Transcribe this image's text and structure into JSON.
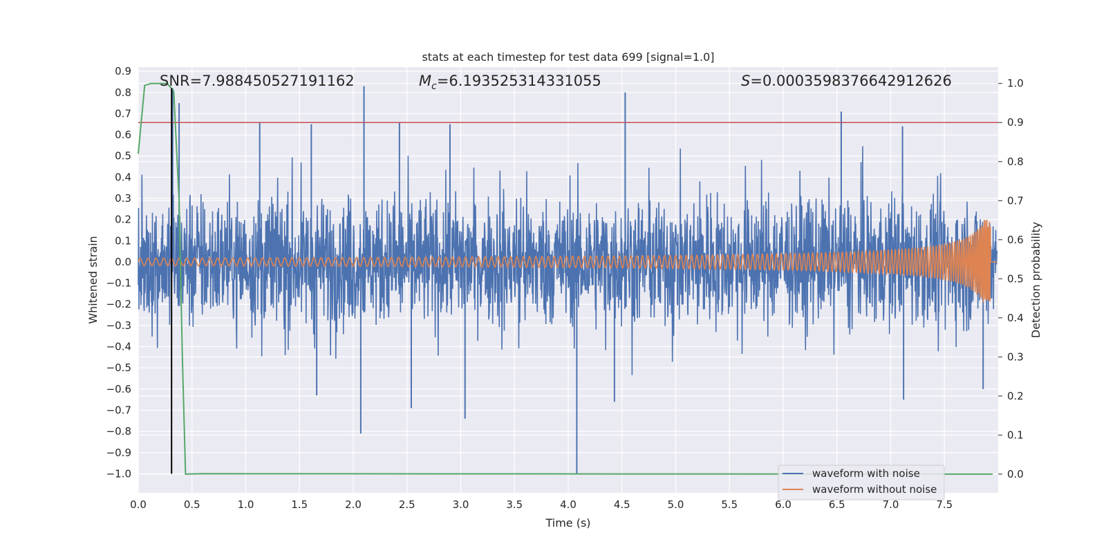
{
  "chart_data": {
    "type": "line",
    "title": "stats at each timestep for test data 699 [signal=1.0]",
    "xlabel": "Time (s)",
    "ylabel": "Whitened strain",
    "ylabel_right": "Detection probability",
    "xlim": [
      0.0,
      8.0
    ],
    "ylim": [
      -1.09,
      0.92
    ],
    "ylim_right": [
      -0.048,
      1.042
    ],
    "x_ticks": [
      "0.0",
      "0.5",
      "1.0",
      "1.5",
      "2.0",
      "2.5",
      "3.0",
      "3.5",
      "4.0",
      "4.5",
      "5.0",
      "5.5",
      "6.0",
      "6.5",
      "7.0",
      "7.5"
    ],
    "y_ticks": [
      "0.9",
      "0.8",
      "0.7",
      "0.6",
      "0.5",
      "0.4",
      "0.3",
      "0.2",
      "0.1",
      "0.0",
      "−0.1",
      "−0.2",
      "−0.3",
      "−0.4",
      "−0.5",
      "−0.6",
      "−0.7",
      "−0.8",
      "−0.9",
      "−1.0"
    ],
    "y_right_ticks": [
      "1.0",
      "0.9",
      "0.8",
      "0.7",
      "0.6",
      "0.5",
      "0.4",
      "0.3",
      "0.2",
      "0.1",
      "0.0"
    ],
    "annotations": {
      "snr": "SNR=7.988450527191162",
      "mc_symbol": "M",
      "mc_sub": "c",
      "mc_value": "=6.193525314331055",
      "s_symbol": "S",
      "s_value": "=0.0003598376642912626"
    },
    "threshold_right": 0.9,
    "marker_time": 0.31,
    "noise_envelope": {
      "typical_max": 0.45,
      "typical_min": -0.48
    },
    "noise_spikes": [
      {
        "t": 0.32,
        "v": 0.82
      },
      {
        "t": 0.38,
        "v": 0.75
      },
      {
        "t": 1.13,
        "v": 0.66
      },
      {
        "t": 1.61,
        "v": 0.65
      },
      {
        "t": 2.1,
        "v": 0.83
      },
      {
        "t": 2.43,
        "v": 0.66
      },
      {
        "t": 2.9,
        "v": 0.65
      },
      {
        "t": 4.53,
        "v": 0.8
      },
      {
        "t": 6.54,
        "v": 0.71
      },
      {
        "t": 7.11,
        "v": 0.64
      },
      {
        "t": 4.08,
        "v": -1.0
      },
      {
        "t": 2.07,
        "v": -0.81
      },
      {
        "t": 2.54,
        "v": -0.69
      },
      {
        "t": 3.04,
        "v": -0.74
      },
      {
        "t": 1.66,
        "v": -0.63
      },
      {
        "t": 7.12,
        "v": -0.65
      },
      {
        "t": 4.43,
        "v": -0.66
      },
      {
        "t": 7.86,
        "v": -0.6
      }
    ],
    "series": [
      {
        "name": "waveform with noise",
        "color": "#4c72b0",
        "axis": "left"
      },
      {
        "name": "waveform without noise",
        "color": "#dd8452",
        "axis": "left"
      },
      {
        "name": "detection probability",
        "color": "#55a868",
        "axis": "right",
        "points": [
          [
            0.0,
            0.82
          ],
          [
            0.06,
            0.995
          ],
          [
            0.12,
            1.0
          ],
          [
            0.27,
            1.0
          ],
          [
            0.33,
            0.98
          ],
          [
            0.38,
            0.7
          ],
          [
            0.41,
            0.3
          ],
          [
            0.44,
            0.0
          ],
          [
            0.6,
            0.001
          ],
          [
            7.95,
            0.0
          ]
        ]
      },
      {
        "name": "threshold",
        "color": "#c44e52",
        "axis": "right"
      },
      {
        "name": "marker",
        "color": "#000000",
        "axis": "left"
      }
    ],
    "legend": [
      "waveform with noise",
      "waveform without noise"
    ],
    "legend_position": "lower-right",
    "grid": true
  }
}
